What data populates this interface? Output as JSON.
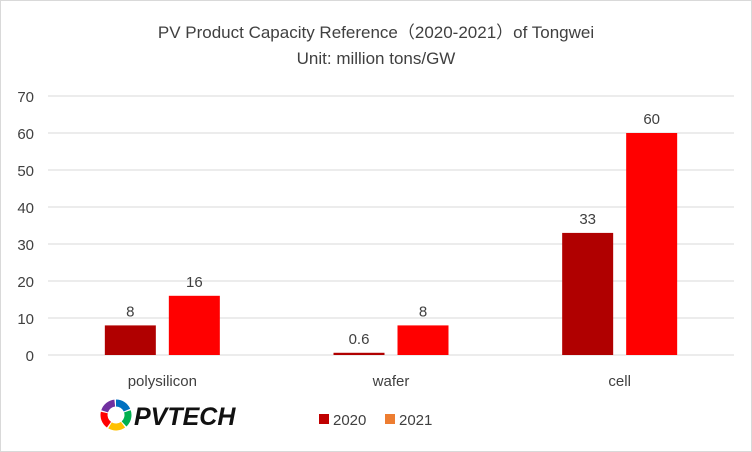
{
  "chart_data": {
    "type": "bar",
    "title": "PV Product Capacity Reference（2020-2021）of Tongwei",
    "subtitle": "Unit: million tons/GW",
    "categories": [
      "polysilicon",
      "wafer",
      "cell"
    ],
    "series": [
      {
        "name": "2020",
        "values": [
          8,
          0.6,
          33
        ],
        "labels": [
          "8",
          "0.6",
          "33"
        ],
        "color": "#b00000"
      },
      {
        "name": "2021",
        "values": [
          16,
          8,
          60
        ],
        "labels": [
          "16",
          "8",
          "60"
        ],
        "color": "#ff0000"
      }
    ],
    "legend_swatch_colors": [
      "#c00000",
      "#ed7d31"
    ],
    "ylim": [
      0,
      70
    ],
    "yticks": [
      0,
      10,
      20,
      30,
      40,
      50,
      60,
      70
    ],
    "grid": true,
    "legend": "bottom",
    "xlabel": "",
    "ylabel": ""
  },
  "logo": {
    "text": "PVTECH",
    "colors": [
      "#0070c0",
      "#00b050",
      "#ffc000",
      "#ff0000",
      "#7030a0"
    ]
  }
}
